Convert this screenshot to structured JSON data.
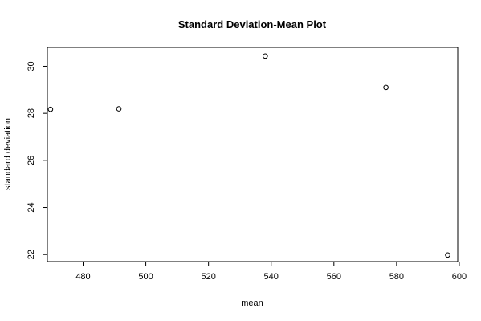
{
  "chart_data": {
    "type": "scatter",
    "title": "Standard Deviation-Mean Plot",
    "xlabel": "mean",
    "ylabel": "standard deviation",
    "x": [
      469.6,
      491.4,
      538.1,
      576.6,
      596.3
    ],
    "y": [
      28.17,
      28.19,
      30.43,
      29.1,
      21.98
    ],
    "xlim": [
      468.6,
      599.5
    ],
    "ylim": [
      21.7,
      30.8
    ],
    "xticks": [
      480,
      500,
      520,
      540,
      560,
      580,
      600
    ],
    "yticks": [
      22,
      24,
      26,
      28,
      30
    ],
    "grid": false,
    "marker": "open-circle",
    "colors": {
      "points": "#000000",
      "axes": "#000000",
      "background": "#ffffff"
    }
  }
}
